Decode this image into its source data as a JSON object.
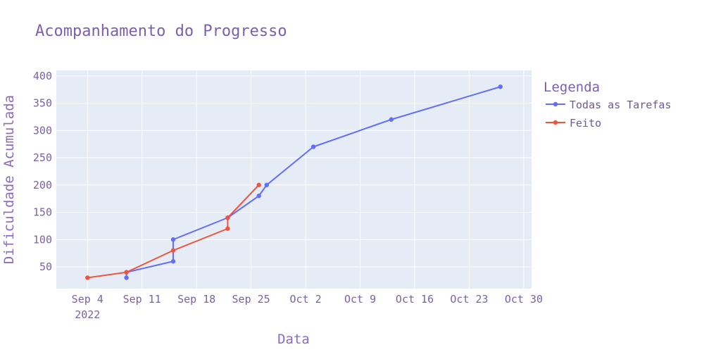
{
  "chart_data": {
    "type": "line",
    "title": "Acompanhamento do Progresso",
    "xlabel": "Data",
    "ylabel": "Dificuldade Acumulada",
    "x_type": "date",
    "xlim": [
      "2022-08-31",
      "2022-10-31"
    ],
    "ylim": [
      10,
      410
    ],
    "grid": true,
    "x_ticks": [
      "2022-09-04",
      "2022-09-11",
      "2022-09-18",
      "2022-09-25",
      "2022-10-02",
      "2022-10-09",
      "2022-10-16",
      "2022-10-23",
      "2022-10-30"
    ],
    "x_tick_labels": [
      "Sep 4",
      "Sep 11",
      "Sep 18",
      "Sep 25",
      "Oct 2",
      "Oct 9",
      "Oct 16",
      "Oct 23",
      "Oct 30"
    ],
    "x_tick_sublabel": "2022",
    "y_ticks": [
      50,
      100,
      150,
      200,
      250,
      300,
      350,
      400
    ],
    "legend": {
      "title": "Legenda",
      "position": "right"
    },
    "series": [
      {
        "name": "Todas as Tarefas",
        "color": "#636efa",
        "points": [
          {
            "x": "2022-09-09",
            "y": 30
          },
          {
            "x": "2022-09-09",
            "y": 40
          },
          {
            "x": "2022-09-15",
            "y": 60
          },
          {
            "x": "2022-09-15",
            "y": 100
          },
          {
            "x": "2022-09-22",
            "y": 140
          },
          {
            "x": "2022-09-26",
            "y": 180
          },
          {
            "x": "2022-09-27",
            "y": 200
          },
          {
            "x": "2022-10-03",
            "y": 270
          },
          {
            "x": "2022-10-13",
            "y": 320
          },
          {
            "x": "2022-10-27",
            "y": 380
          }
        ]
      },
      {
        "name": "Feito",
        "color": "#ef553b",
        "points": [
          {
            "x": "2022-09-04",
            "y": 30
          },
          {
            "x": "2022-09-09",
            "y": 40
          },
          {
            "x": "2022-09-15",
            "y": 80
          },
          {
            "x": "2022-09-22",
            "y": 120
          },
          {
            "x": "2022-09-22",
            "y": 140
          },
          {
            "x": "2022-09-26",
            "y": 200
          }
        ]
      }
    ]
  }
}
